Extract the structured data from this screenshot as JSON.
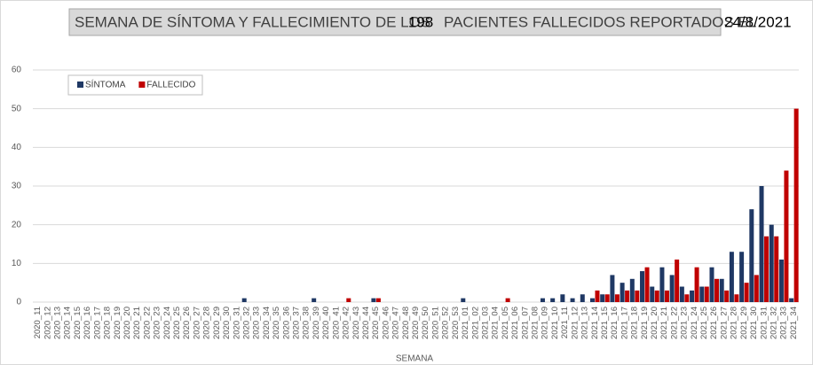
{
  "chart_data": {
    "type": "bar",
    "title_prefix": "SEMANA DE SÍNTOMA Y FALLECIMIENTO DE LOS",
    "total": "198",
    "title_suffix": "PACIENTES FALLECIDOS REPORTADOS EL",
    "date": "24/8/2021",
    "x_label": "SEMANA",
    "categories": [
      "2020_11",
      "2020_12",
      "2020_13",
      "2020_14",
      "2020_15",
      "2020_16",
      "2020_17",
      "2020_18",
      "2020_19",
      "2020_20",
      "2020_21",
      "2020_22",
      "2020_23",
      "2020_24",
      "2020_25",
      "2020_26",
      "2020_27",
      "2020_28",
      "2020_29",
      "2020_30",
      "2020_31",
      "2020_32",
      "2020_33",
      "2020_34",
      "2020_35",
      "2020_36",
      "2020_37",
      "2020_38",
      "2020_39",
      "2020_40",
      "2020_41",
      "2020_42",
      "2020_43",
      "2020_44",
      "2020_45",
      "2020_46",
      "2020_47",
      "2020_48",
      "2020_49",
      "2020_50",
      "2020_51",
      "2020_52",
      "2020_53",
      "2021_01",
      "2021_02",
      "2021_03",
      "2021_04",
      "2021_05",
      "2021_06",
      "2021_07",
      "2021_08",
      "2021_09",
      "2021_10",
      "2021_11",
      "2021_12",
      "2021_13",
      "2021_14",
      "2021_15",
      "2021_16",
      "2021_17",
      "2021_18",
      "2021_19",
      "2021_20",
      "2021_21",
      "2021_22",
      "2021_23",
      "2021_24",
      "2021_25",
      "2021_26",
      "2021_27",
      "2021_28",
      "2021_29",
      "2021_30",
      "2021_31",
      "2021_32",
      "2021_33",
      "2021_34"
    ],
    "series": [
      {
        "name": "SÍNTOMA",
        "color": "#1f3864",
        "values": [
          0,
          0,
          0,
          0,
          0,
          0,
          0,
          0,
          0,
          0,
          0,
          0,
          0,
          0,
          0,
          0,
          0,
          0,
          0,
          0,
          0,
          1,
          0,
          0,
          0,
          0,
          0,
          0,
          1,
          0,
          0,
          0,
          0,
          0,
          1,
          0,
          0,
          0,
          0,
          0,
          0,
          0,
          0,
          1,
          0,
          0,
          0,
          0,
          0,
          0,
          0,
          1,
          1,
          2,
          1,
          2,
          1,
          2,
          7,
          5,
          6,
          8,
          4,
          9,
          7,
          4,
          3,
          4,
          9,
          6,
          13,
          13,
          24,
          30,
          20,
          11,
          1
        ]
      },
      {
        "name": "FALLECIDO",
        "color": "#c00000",
        "values": [
          0,
          0,
          0,
          0,
          0,
          0,
          0,
          0,
          0,
          0,
          0,
          0,
          0,
          0,
          0,
          0,
          0,
          0,
          0,
          0,
          0,
          0,
          0,
          0,
          0,
          0,
          0,
          0,
          0,
          0,
          0,
          1,
          0,
          0,
          1,
          0,
          0,
          0,
          0,
          0,
          0,
          0,
          0,
          0,
          0,
          0,
          0,
          1,
          0,
          0,
          0,
          0,
          0,
          0,
          0,
          0,
          3,
          2,
          2,
          3,
          3,
          9,
          3,
          3,
          11,
          2,
          9,
          4,
          6,
          3,
          2,
          5,
          7,
          17,
          17,
          34,
          50
        ]
      }
    ],
    "ylim": [
      0,
      60
    ],
    "yticks": [
      0,
      10,
      20,
      30,
      40,
      50,
      60
    ],
    "grid": true,
    "legend": "top-left"
  }
}
